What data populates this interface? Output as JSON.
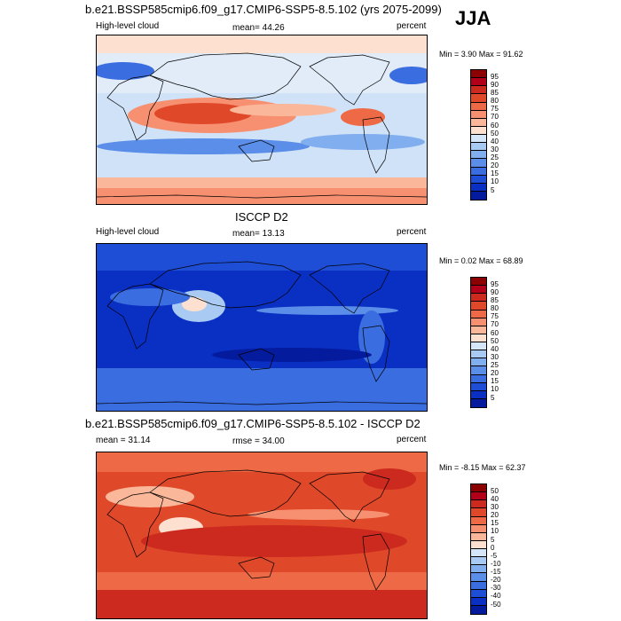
{
  "season_label": "JJA",
  "panels": [
    {
      "title": "b.e21.BSSP585cmip6.f09_g17.CMIP6-SSP5-8.5.102 (yrs 2075-2099)",
      "left_label": "High-level cloud",
      "center_label": "mean=  44.26",
      "right_label": "percent",
      "minmax": "Min =   3.90 Max =  91.62",
      "colorbar_labels": [
        "95",
        "90",
        "85",
        "80",
        "75",
        "70",
        "60",
        "50",
        "40",
        "30",
        "25",
        "20",
        "15",
        "10",
        "5"
      ],
      "colorbar_colors": [
        "#8b0000",
        "#b2001b",
        "#cc2a1e",
        "#e0482a",
        "#ee6a46",
        "#f79070",
        "#fbb799",
        "#fde0cf",
        "#d4e6f8",
        "#a9cbf3",
        "#81aeee",
        "#5b8ee8",
        "#3a6de0",
        "#1f4ed6",
        "#0a2fc3",
        "#041b9e"
      ]
    },
    {
      "title": "ISCCP D2",
      "left_label": "High-level cloud",
      "center_label": "mean=  13.13",
      "right_label": "percent",
      "minmax": "Min =   0.02 Max =  68.89",
      "colorbar_labels": [
        "95",
        "90",
        "85",
        "80",
        "75",
        "70",
        "60",
        "50",
        "40",
        "30",
        "25",
        "20",
        "15",
        "10",
        "5"
      ],
      "colorbar_colors": [
        "#8b0000",
        "#b2001b",
        "#cc2a1e",
        "#e0482a",
        "#ee6a46",
        "#f79070",
        "#fbb799",
        "#fde0cf",
        "#d4e6f8",
        "#a9cbf3",
        "#81aeee",
        "#5b8ee8",
        "#3a6de0",
        "#1f4ed6",
        "#0a2fc3",
        "#041b9e"
      ]
    },
    {
      "title": "b.e21.BSSP585cmip6.f09_g17.CMIP6-SSP5-8.5.102 - ISCCP D2",
      "left_label": "mean =  31.14",
      "center_label": "rmse =  34.00",
      "right_label": "percent",
      "minmax": "Min =  -8.15 Max =  62.37",
      "colorbar_labels": [
        "50",
        "40",
        "30",
        "20",
        "15",
        "10",
        "5",
        "0",
        "-5",
        "-10",
        "-15",
        "-20",
        "-30",
        "-40",
        "-50"
      ],
      "colorbar_colors": [
        "#8b0000",
        "#b2001b",
        "#cc2a1e",
        "#e0482a",
        "#ee6a46",
        "#f79070",
        "#fbb799",
        "#fde0cf",
        "#d4e6f8",
        "#a9cbf3",
        "#81aeee",
        "#5b8ee8",
        "#3a6de0",
        "#1f4ed6",
        "#0a2fc3",
        "#041b9e"
      ]
    }
  ]
}
